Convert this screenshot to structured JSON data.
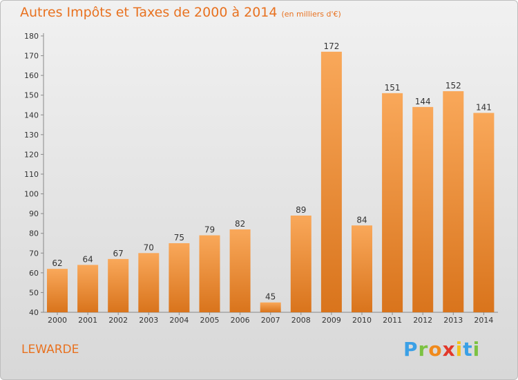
{
  "header": {
    "title": "Autres Impôts et Taxes de 2000 à 2014",
    "subtitle": "(en milliers d'€)"
  },
  "footer": {
    "commune": "LEWARDE",
    "logo_text": "Proxiti"
  },
  "colors": {
    "accent": "#e8711f",
    "bar_light": "#f9a85a",
    "bar_dark": "#d9741c"
  },
  "chart_data": {
    "type": "bar",
    "title": "Autres Impôts et Taxes de 2000 à 2014",
    "subtitle": "(en milliers d'€)",
    "xlabel": "",
    "ylabel": "",
    "categories": [
      "2000",
      "2001",
      "2002",
      "2003",
      "2004",
      "2005",
      "2006",
      "2007",
      "2008",
      "2009",
      "2010",
      "2011",
      "2012",
      "2013",
      "2014"
    ],
    "values": [
      62,
      64,
      67,
      70,
      75,
      79,
      82,
      45,
      89,
      172,
      84,
      151,
      144,
      152,
      141
    ],
    "ylim": [
      40,
      180
    ],
    "yticks": [
      40,
      50,
      60,
      70,
      80,
      90,
      100,
      110,
      120,
      130,
      140,
      150,
      160,
      170,
      180
    ],
    "grid": false,
    "legend": "none"
  }
}
